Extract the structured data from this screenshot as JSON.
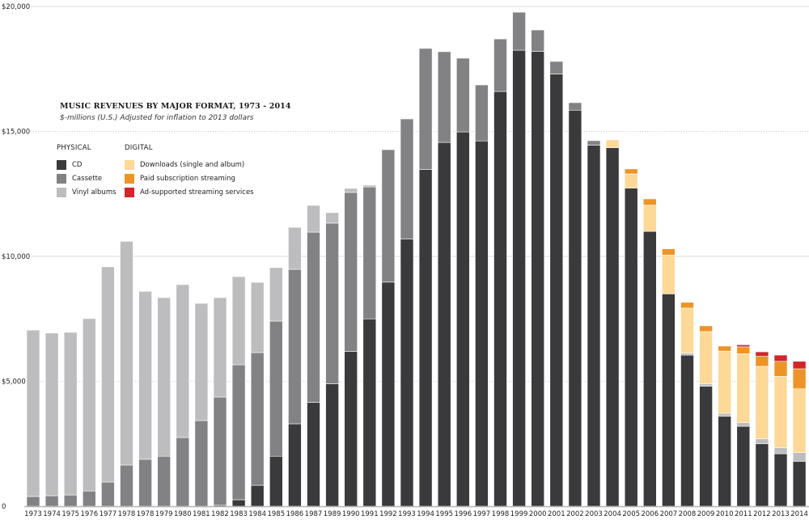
{
  "chart_data": {
    "type": "bar",
    "stacked": true,
    "title": "MUSIC REVENUES BY MAJOR FORMAT, 1973 - 2014",
    "subtitle": "$-millions (U.S.) Adjusted for inflation to 2013 dollars",
    "xlabel": "",
    "ylabel": "",
    "ylim": [
      0,
      20000
    ],
    "yticks": [
      {
        "value": 0,
        "label": "0"
      },
      {
        "value": 5000,
        "label": "$5,000"
      },
      {
        "value": 10000,
        "label": "$10,000"
      },
      {
        "value": 15000,
        "label": "$15,000"
      },
      {
        "value": 20000,
        "label": "$20,000"
      }
    ],
    "grid": true,
    "legend_placement": "top-left",
    "categories": [
      "1973",
      "1974",
      "1975",
      "1976",
      "1977",
      "1978",
      "1978",
      "1979",
      "1980",
      "1981",
      "1982",
      "1983",
      "1984",
      "1985",
      "1986",
      "1987",
      "1989",
      "1990",
      "1991",
      "1992",
      "1993",
      "1994",
      "1995",
      "1996",
      "1997",
      "1998",
      "1999",
      "2000",
      "2001",
      "2002",
      "2003",
      "2004",
      "2005",
      "2006",
      "2007",
      "2008",
      "2009",
      "2010",
      "2011",
      "2012",
      "2013",
      "2014"
    ],
    "legend_groups": [
      {
        "heading": "PHYSICAL",
        "series_keys": [
          "cd",
          "cassette",
          "vinyl"
        ]
      },
      {
        "heading": "DIGITAL",
        "series_keys": [
          "downloads",
          "paid",
          "ad"
        ]
      }
    ],
    "series": [
      {
        "key": "cd",
        "name": "CD",
        "color": "#3a393b",
        "values": [
          0,
          0,
          0,
          0,
          0,
          0,
          0,
          0,
          0,
          0,
          40,
          260,
          840,
          2000,
          3300,
          4160,
          4900,
          6200,
          7500,
          8970,
          10700,
          13480,
          14560,
          14980,
          14620,
          16600,
          18250,
          18200,
          17300,
          15850,
          14450,
          14350,
          12730,
          11000,
          8500,
          6050,
          4800,
          3600,
          3200,
          2500,
          2100,
          1800
        ]
      },
      {
        "key": "cassette",
        "name": "Cassette",
        "color": "#828285",
        "values": [
          390,
          420,
          450,
          610,
          970,
          1650,
          1880,
          2000,
          2750,
          3430,
          4330,
          5400,
          5310,
          5410,
          6180,
          6810,
          6430,
          6360,
          5280,
          5300,
          4800,
          4840,
          3630,
          2950,
          2240,
          2100,
          1520,
          860,
          500,
          300,
          180,
          0,
          0,
          0,
          0,
          0,
          0,
          0,
          0,
          0,
          0,
          0
        ]
      },
      {
        "key": "vinyl",
        "name": "Vinyl albums",
        "color": "#bdbdbf",
        "values": [
          6660,
          6510,
          6510,
          6900,
          8610,
          8950,
          6720,
          6350,
          6120,
          4690,
          3980,
          3530,
          2810,
          2140,
          1680,
          1070,
          420,
          160,
          70,
          0,
          0,
          0,
          0,
          0,
          0,
          0,
          0,
          0,
          0,
          0,
          0,
          0,
          0,
          0,
          0,
          80,
          100,
          120,
          150,
          200,
          250,
          350
        ]
      },
      {
        "key": "downloads",
        "name": "Downloads (single and album)",
        "color": "#fed896",
        "values": [
          0,
          0,
          0,
          0,
          0,
          0,
          0,
          0,
          0,
          0,
          0,
          0,
          0,
          0,
          0,
          0,
          0,
          0,
          0,
          0,
          0,
          0,
          0,
          0,
          0,
          0,
          0,
          0,
          0,
          0,
          0,
          310,
          570,
          1050,
          1550,
          1800,
          2090,
          2490,
          2750,
          2900,
          2850,
          2550
        ]
      },
      {
        "key": "paid",
        "name": "Paid subscription streaming",
        "color": "#ed9427",
        "values": [
          0,
          0,
          0,
          0,
          0,
          0,
          0,
          0,
          0,
          0,
          0,
          0,
          0,
          0,
          0,
          0,
          0,
          0,
          0,
          0,
          0,
          0,
          0,
          0,
          0,
          0,
          0,
          0,
          0,
          0,
          0,
          0,
          200,
          250,
          250,
          230,
          230,
          200,
          280,
          400,
          600,
          800
        ]
      },
      {
        "key": "ad",
        "name": "Ad-supported streaming services",
        "color": "#d3252a",
        "values": [
          0,
          0,
          0,
          0,
          0,
          0,
          0,
          0,
          0,
          0,
          0,
          0,
          0,
          0,
          0,
          0,
          0,
          0,
          0,
          0,
          0,
          0,
          0,
          0,
          0,
          0,
          0,
          0,
          0,
          0,
          0,
          0,
          0,
          0,
          0,
          0,
          0,
          0,
          80,
          180,
          250,
          300
        ]
      }
    ]
  }
}
